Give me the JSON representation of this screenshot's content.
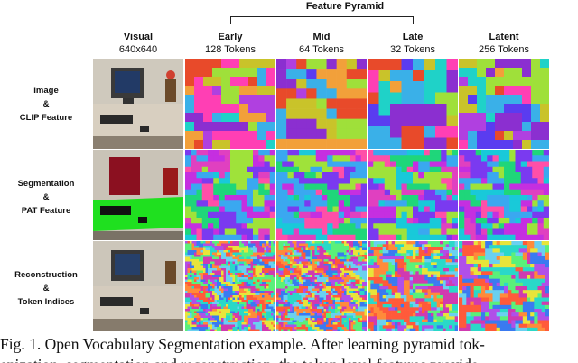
{
  "figure": {
    "group_label": "Feature Pyramid",
    "columns": [
      {
        "title": "Visual",
        "subtitle": "640x640"
      },
      {
        "title": "Early",
        "subtitle": "128 Tokens"
      },
      {
        "title": "Mid",
        "subtitle": "64 Tokens"
      },
      {
        "title": "Late",
        "subtitle": "32 Tokens"
      },
      {
        "title": "Latent",
        "subtitle": "256 Tokens"
      }
    ],
    "rows": [
      {
        "line1": "Image",
        "line2": "&",
        "line3": "CLIP Feature"
      },
      {
        "line1": "Segmentation",
        "line2": "&",
        "line3": "PAT Feature"
      },
      {
        "line1": "Reconstruction",
        "line2": "&",
        "line3": "Token Indices"
      }
    ],
    "palettes": {
      "clip": [
        "#f2a03a",
        "#8b2fd0",
        "#1fd2c8",
        "#ff3fb4",
        "#5a3cf0",
        "#9fe03a",
        "#e84a2a",
        "#3ab0e8",
        "#c9c32a",
        "#b040e0"
      ],
      "pat": [
        "#1fd67a",
        "#c52fe0",
        "#ff4fa8",
        "#7a3af0",
        "#19c9d9",
        "#9fe23a",
        "#e040c0",
        "#3aa8f0"
      ],
      "index": [
        "#2ad8c8",
        "#ff5a3a",
        "#b04fe8",
        "#e8e43a",
        "#3a7af0",
        "#5af07a",
        "#ff8a3a",
        "#6ad0f0",
        "#d03ab0"
      ]
    }
  },
  "caption": {
    "line1": "Fig. 1.  Open Vocabulary Segmentation example. After learning pyramid tok-",
    "line2": "enization, segmentation and reconstruction, the token level features provide"
  }
}
